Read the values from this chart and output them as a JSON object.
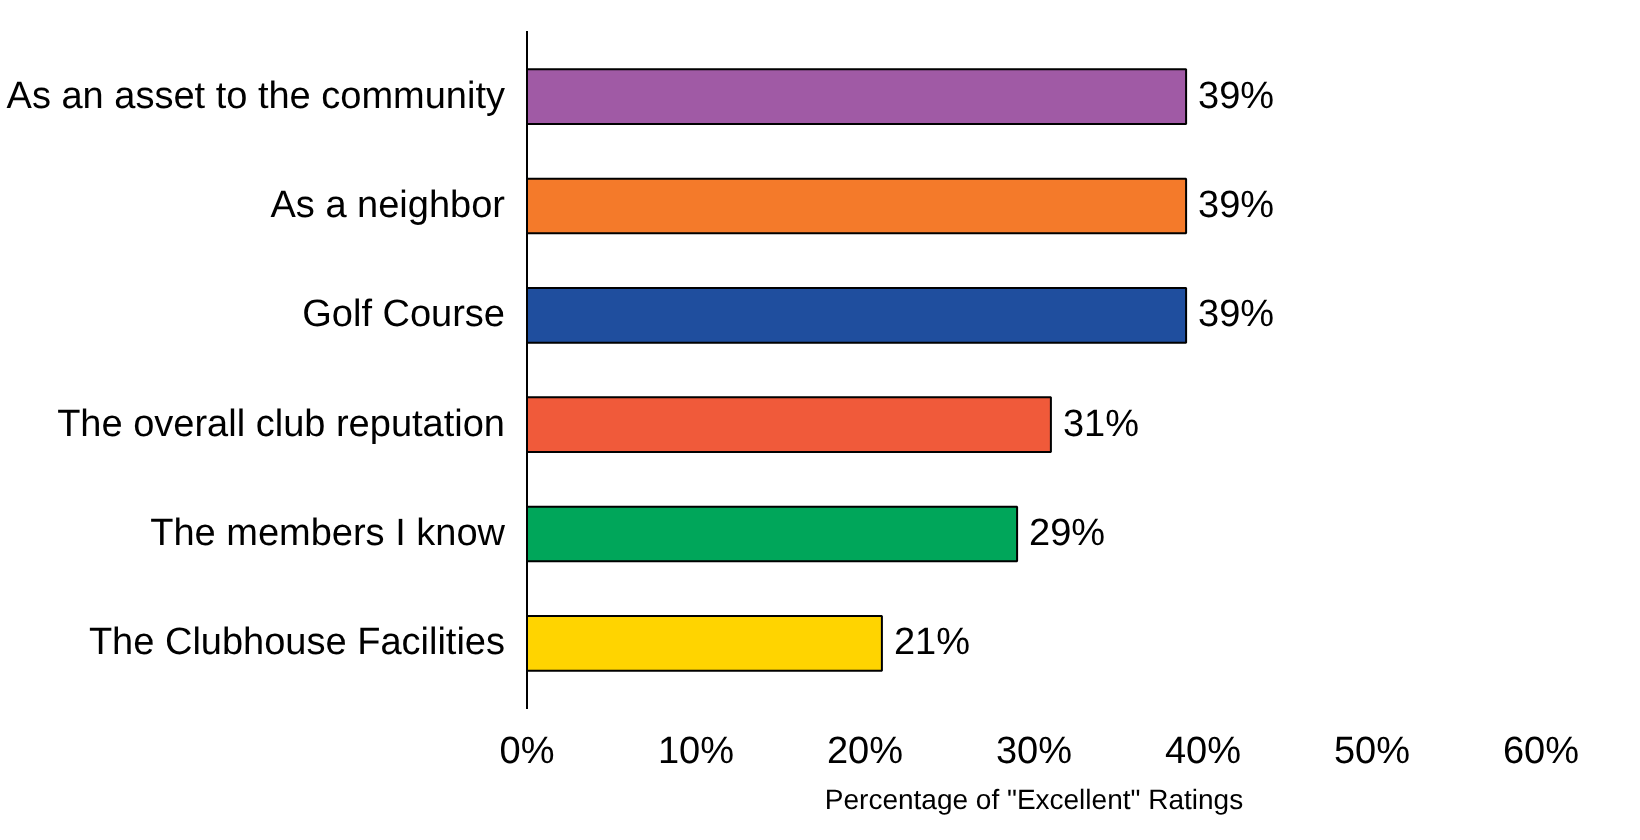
{
  "chart_data": {
    "type": "bar",
    "orientation": "horizontal",
    "xlabel": "Percentage of \"Excellent\" Ratings",
    "categories": [
      "As an asset to the community",
      "As a neighbor",
      "Golf Course",
      "The overall club reputation",
      "The members I know",
      "The Clubhouse Facilities"
    ],
    "values": [
      39,
      39,
      39,
      31,
      29,
      21
    ],
    "colors": [
      "#a05aa5",
      "#f47a2a",
      "#1f4e9e",
      "#f05a3a",
      "#00a65a",
      "#ffd400"
    ],
    "value_labels": [
      "39%",
      "39%",
      "39%",
      "31%",
      "29%",
      "21%"
    ],
    "xlim": [
      0,
      60
    ],
    "xticks": [
      {
        "value": 0,
        "label": "0%"
      },
      {
        "value": 10,
        "label": "10%"
      },
      {
        "value": 20,
        "label": "20%"
      },
      {
        "value": 30,
        "label": "30%"
      },
      {
        "value": 40,
        "label": "40%"
      },
      {
        "value": 50,
        "label": "50%"
      },
      {
        "value": 60,
        "label": "60%"
      }
    ],
    "grid": false
  }
}
